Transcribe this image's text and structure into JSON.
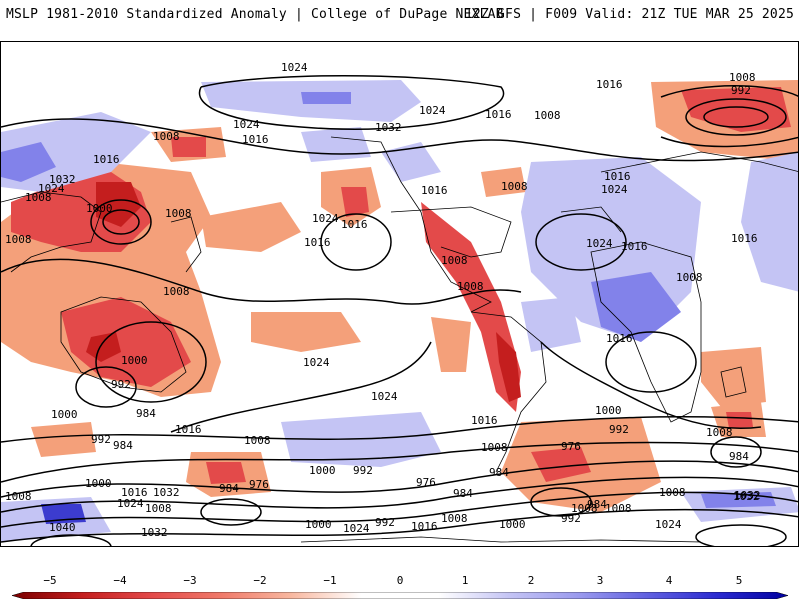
{
  "header": {
    "left_title": "MSLP 1981-2010 Standardized Anomaly | College of DuPage NEXLAB",
    "right_title": "12Z GFS | F009 Valid: 21Z TUE MAR 25 2025"
  },
  "map": {
    "contour_labels": [
      "1024",
      "1016",
      "1008",
      "992",
      "1024",
      "1008",
      "1024",
      "1016",
      "1032",
      "1008",
      "1016",
      "1032",
      "1024",
      "1008",
      "1000",
      "1008",
      "1016",
      "1024",
      "1016",
      "1016",
      "1008",
      "1016",
      "1024",
      "1016",
      "1008",
      "1008",
      "1016",
      "1024",
      "1008",
      "1008",
      "1008",
      "1016",
      "1016",
      "1000",
      "1024",
      "992",
      "984",
      "1024",
      "1016",
      "1008",
      "1000",
      "992",
      "1008",
      "1016",
      "976",
      "1000",
      "992",
      "976",
      "984",
      "1008",
      "984",
      "1000",
      "992",
      "984",
      "976",
      "984",
      "1008",
      "984",
      "1008",
      "1032",
      "1016",
      "1032",
      "1000",
      "1008",
      "1024",
      "1040",
      "1032",
      "1000",
      "1024",
      "992",
      "1016",
      "1008",
      "1000",
      "992",
      "1024",
      "1008",
      "984",
      "1008",
      "1032"
    ],
    "anomaly_colors": {
      "neg_strong": "#c41e1e",
      "neg_mid": "#e34a4a",
      "neg_light": "#f4a07a",
      "pos_light": "#c4c4f4",
      "pos_mid": "#8282ea",
      "pos_strong": "#3c3ccf"
    }
  },
  "colorbar": {
    "labels": [
      "−5",
      "−4",
      "−3",
      "−2",
      "−1",
      "0",
      "1",
      "2",
      "3",
      "4",
      "5"
    ]
  }
}
